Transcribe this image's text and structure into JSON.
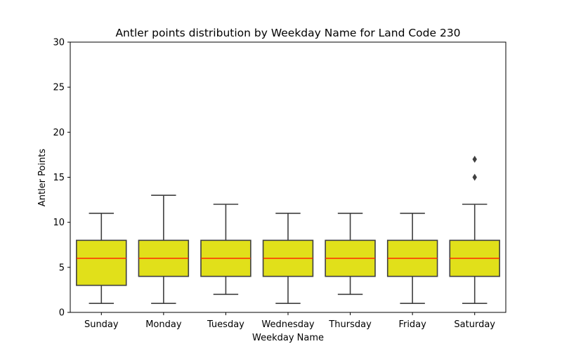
{
  "chart_data": {
    "type": "boxplot",
    "title": "Antler points distribution by Weekday Name for Land Code 230",
    "xlabel": "Weekday Name",
    "ylabel": "Antler Points",
    "ylim": [
      0,
      30
    ],
    "yticks": [
      0,
      5,
      10,
      15,
      20,
      25,
      30
    ],
    "grid": false,
    "categories": [
      "Sunday",
      "Monday",
      "Tuesday",
      "Wednesday",
      "Thursday",
      "Friday",
      "Saturday"
    ],
    "boxes": [
      {
        "min": 1,
        "q1": 3,
        "median": 6,
        "q3": 8,
        "max": 11,
        "outliers": []
      },
      {
        "min": 1,
        "q1": 4,
        "median": 6,
        "q3": 8,
        "max": 13,
        "outliers": []
      },
      {
        "min": 2,
        "q1": 4,
        "median": 6,
        "q3": 8,
        "max": 12,
        "outliers": []
      },
      {
        "min": 1,
        "q1": 4,
        "median": 6,
        "q3": 8,
        "max": 11,
        "outliers": []
      },
      {
        "min": 2,
        "q1": 4,
        "median": 6,
        "q3": 8,
        "max": 11,
        "outliers": []
      },
      {
        "min": 1,
        "q1": 4,
        "median": 6,
        "q3": 8,
        "max": 11,
        "outliers": []
      },
      {
        "min": 1,
        "q1": 4,
        "median": 6,
        "q3": 8,
        "max": 12,
        "outliers": [
          15,
          17
        ]
      }
    ],
    "colors": {
      "box_fill": "#e1e01a",
      "box_edge": "#3f3f3f",
      "median": "#ff2a00",
      "whisker": "#3f3f3f",
      "outlier": "#3f3f3f"
    }
  }
}
